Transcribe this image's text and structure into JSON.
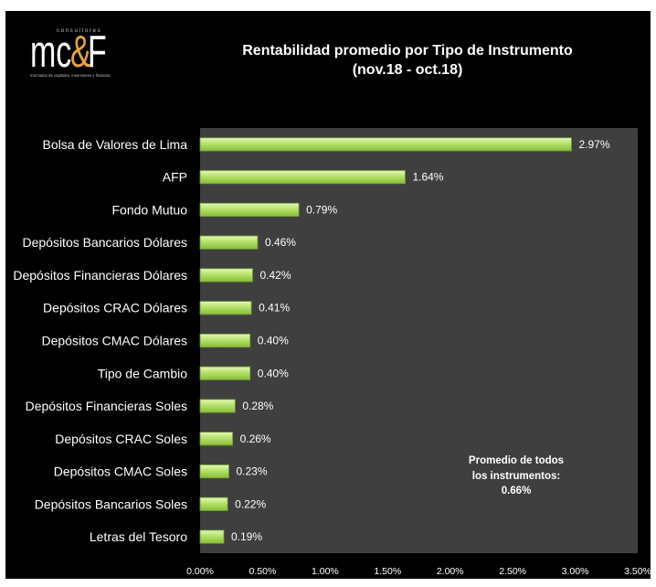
{
  "logo": {
    "top_text": "consultores",
    "mark": [
      "mc",
      "&",
      "F"
    ],
    "tagline": "mercados de capitales, inversiones y finanzas"
  },
  "colors": {
    "chart_background": "#000000",
    "plot_area": "#3f3f3f",
    "text": "#ffffff",
    "logo_text": "#bfbfbf",
    "logo_accent": "#e8a33c",
    "bar_light": "#e4f8b8",
    "bar_mid": "#b5e16a",
    "bar_dark": "#86bf3a",
    "bar_border": "#6f9e2f"
  },
  "chart_data": {
    "type": "bar",
    "orientation": "horizontal",
    "title": "Rentabilidad promedio por Tipo de Instrumento",
    "subtitle": "(nov.18 - oct.18)",
    "categories": [
      "Bolsa de Valores de Lima",
      "AFP",
      "Fondo Mutuo",
      "Depósitos Bancarios Dólares",
      "Depósitos Financieras Dólares",
      "Depósitos CRAC Dólares",
      "Depósitos CMAC Dólares",
      "Tipo de Cambio",
      "Depósitos Financieras Soles",
      "Depósitos CRAC Soles",
      "Depósitos CMAC Soles",
      "Depósitos Bancarios Soles",
      "Letras del Tesoro"
    ],
    "values": [
      2.97,
      1.64,
      0.79,
      0.46,
      0.42,
      0.41,
      0.4,
      0.4,
      0.28,
      0.26,
      0.23,
      0.22,
      0.19
    ],
    "data_labels": [
      "2.97%",
      "1.64%",
      "0.79%",
      "0.46%",
      "0.42%",
      "0.41%",
      "0.40%",
      "0.40%",
      "0.28%",
      "0.26%",
      "0.23%",
      "0.22%",
      "0.19%"
    ],
    "xlim": [
      0,
      3.5
    ],
    "xtick_values": [
      0,
      0.5,
      1,
      1.5,
      2,
      2.5,
      3,
      3.5
    ],
    "xtick_labels": [
      "0.00%",
      "0.50%",
      "1.00%",
      "1.50%",
      "2.00%",
      "2.50%",
      "3.00%",
      "3.50%"
    ],
    "grid": false,
    "legend": "none",
    "annotation": [
      "Promedio de todos",
      "los instrumentos:",
      "0.66%"
    ]
  }
}
